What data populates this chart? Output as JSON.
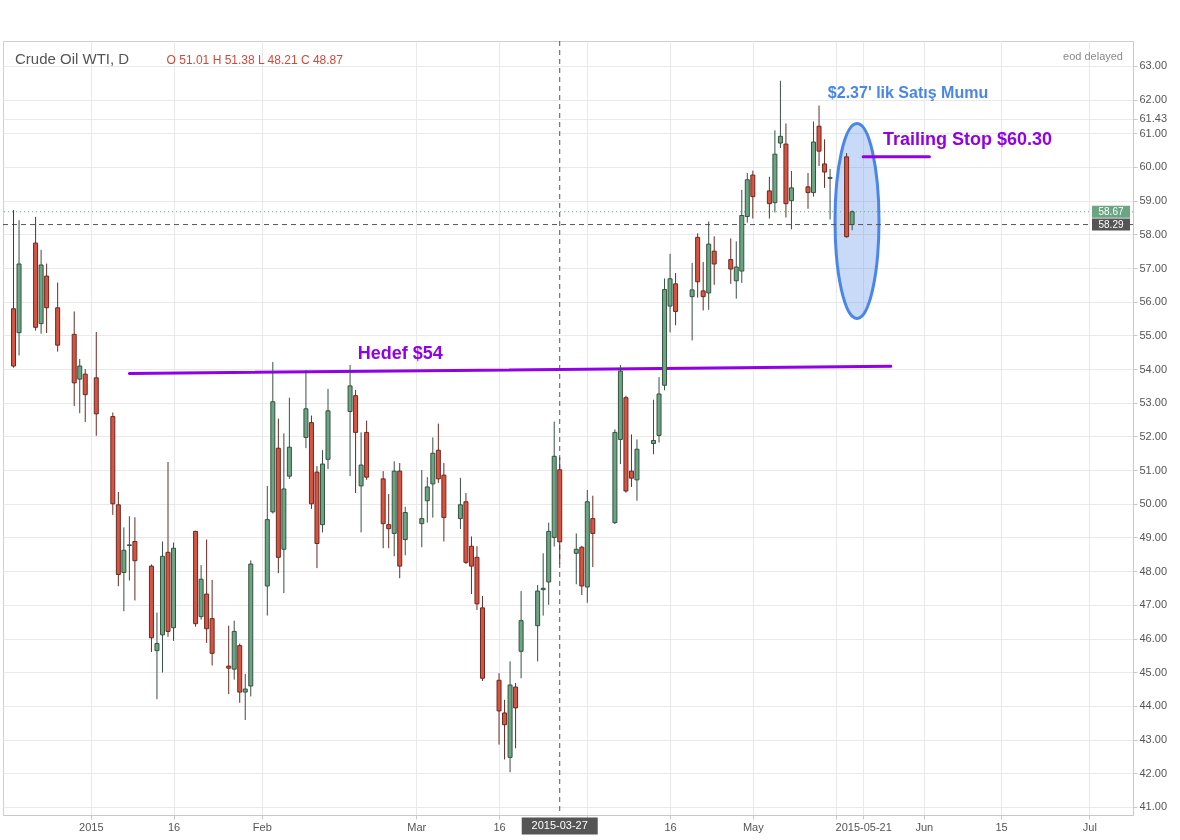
{
  "chart_data": {
    "type": "candlestick",
    "title": "Crude Oil WTI, D",
    "subtitle": "O 51.01 H 51.38 L 48.21 C 48.87",
    "x": [
      "2014-12-18",
      "2014-12-19",
      "2014-12-22",
      "2014-12-23",
      "2014-12-24",
      "2014-12-26",
      "2014-12-29",
      "2014-12-30",
      "2014-12-31",
      "2015-01-02",
      "2015-01-05",
      "2015-01-06",
      "2015-01-07",
      "2015-01-08",
      "2015-01-09",
      "2015-01-12",
      "2015-01-13",
      "2015-01-14",
      "2015-01-15",
      "2015-01-16",
      "2015-01-20",
      "2015-01-21",
      "2015-01-22",
      "2015-01-23",
      "2015-01-26",
      "2015-01-27",
      "2015-01-28",
      "2015-01-29",
      "2015-01-30",
      "2015-02-02",
      "2015-02-03",
      "2015-02-04",
      "2015-02-05",
      "2015-02-06",
      "2015-02-09",
      "2015-02-10",
      "2015-02-11",
      "2015-02-12",
      "2015-02-13",
      "2015-02-17",
      "2015-02-18",
      "2015-02-19",
      "2015-02-20",
      "2015-02-23",
      "2015-02-24",
      "2015-02-25",
      "2015-02-26",
      "2015-02-27",
      "2015-03-02",
      "2015-03-03",
      "2015-03-04",
      "2015-03-05",
      "2015-03-06",
      "2015-03-09",
      "2015-03-10",
      "2015-03-11",
      "2015-03-12",
      "2015-03-13",
      "2015-03-16",
      "2015-03-17",
      "2015-03-18",
      "2015-03-19",
      "2015-03-20",
      "2015-03-23",
      "2015-03-24",
      "2015-03-25",
      "2015-03-26",
      "2015-03-27",
      "2015-03-30",
      "2015-03-31",
      "2015-04-01",
      "2015-04-02",
      "2015-04-06",
      "2015-04-07",
      "2015-04-08",
      "2015-04-09",
      "2015-04-10",
      "2015-04-13",
      "2015-04-14",
      "2015-04-15",
      "2015-04-16",
      "2015-04-17",
      "2015-04-20",
      "2015-04-21",
      "2015-04-22",
      "2015-04-23",
      "2015-04-24",
      "2015-04-27",
      "2015-04-28",
      "2015-04-29",
      "2015-04-30",
      "2015-05-01",
      "2015-05-04",
      "2015-05-05",
      "2015-05-06",
      "2015-05-07",
      "2015-05-08",
      "2015-05-11",
      "2015-05-12",
      "2015-05-13",
      "2015-05-14",
      "2015-05-15",
      "2015-05-18",
      "2015-05-19"
    ],
    "ohlc": [
      [
        55.79,
        58.72,
        54.04,
        54.09
      ],
      [
        55.08,
        58.42,
        54.4,
        57.12
      ],
      [
        57.74,
        58.52,
        55.14,
        55.24
      ],
      [
        55.35,
        57.54,
        55.05,
        57.09
      ],
      [
        56.76,
        57.13,
        55.07,
        55.82
      ],
      [
        55.82,
        56.57,
        54.52,
        54.71
      ],
      [
        55.03,
        55.71,
        52.9,
        53.59
      ],
      [
        53.7,
        54.3,
        52.69,
        54.09
      ],
      [
        53.85,
        54.0,
        52.43,
        53.24
      ],
      [
        53.74,
        55.1,
        52.02,
        52.67
      ],
      [
        52.59,
        52.71,
        49.67,
        50.0
      ],
      [
        49.97,
        50.35,
        47.55,
        47.9
      ],
      [
        47.96,
        49.3,
        46.81,
        48.62
      ],
      [
        48.76,
        49.63,
        47.72,
        48.78
      ],
      [
        48.88,
        49.6,
        47.13,
        48.31
      ],
      [
        48.15,
        48.2,
        45.6,
        46.02
      ],
      [
        45.64,
        46.77,
        44.2,
        45.85
      ],
      [
        46.11,
        48.88,
        44.99,
        48.44
      ],
      [
        48.56,
        51.24,
        46.05,
        46.21
      ],
      [
        46.32,
        48.85,
        45.93,
        48.68
      ],
      [
        49.18,
        49.2,
        46.35,
        46.44
      ],
      [
        46.65,
        48.18,
        46.56,
        47.76
      ],
      [
        47.32,
        48.94,
        45.87,
        46.29
      ],
      [
        46.59,
        47.74,
        45.2,
        45.56
      ],
      [
        45.18,
        46.38,
        44.35,
        45.12
      ],
      [
        45.09,
        46.53,
        44.78,
        46.21
      ],
      [
        45.79,
        45.85,
        44.09,
        44.41
      ],
      [
        44.41,
        44.95,
        43.58,
        44.5
      ],
      [
        44.59,
        48.32,
        44.28,
        48.21
      ],
      [
        47.56,
        50.53,
        46.68,
        49.53
      ],
      [
        49.76,
        54.21,
        49.71,
        53.03
      ],
      [
        51.65,
        52.53,
        47.94,
        48.41
      ],
      [
        48.65,
        52.09,
        47.35,
        50.44
      ],
      [
        50.82,
        53.15,
        50.74,
        51.68
      ],
      [
        51.97,
        53.97,
        51.65,
        52.82
      ],
      [
        52.41,
        52.62,
        49.85,
        50.0
      ],
      [
        50.94,
        51.12,
        48.09,
        48.82
      ],
      [
        49.38,
        51.59,
        49.15,
        51.18
      ],
      [
        51.32,
        53.41,
        51.03,
        52.76
      ],
      [
        52.74,
        54.12,
        50.82,
        53.5
      ],
      [
        53.21,
        53.38,
        50.32,
        52.12
      ],
      [
        50.53,
        52.12,
        49.15,
        51.15
      ],
      [
        52.12,
        52.47,
        50.71,
        50.79
      ],
      [
        50.74,
        50.97,
        48.68,
        49.41
      ],
      [
        49.38,
        50.29,
        48.68,
        49.26
      ],
      [
        49.12,
        51.26,
        48.44,
        50.97
      ],
      [
        50.97,
        51.21,
        47.79,
        48.15
      ],
      [
        48.94,
        49.91,
        48.47,
        49.74
      ],
      [
        49.41,
        51.0,
        48.71,
        49.56
      ],
      [
        50.09,
        50.79,
        49.44,
        50.5
      ],
      [
        50.59,
        51.97,
        49.59,
        51.5
      ],
      [
        51.59,
        52.38,
        50.62,
        50.74
      ],
      [
        50.85,
        51.21,
        48.88,
        49.59
      ],
      [
        49.56,
        50.77,
        49.25,
        49.97
      ],
      [
        50.06,
        50.32,
        48.21,
        48.26
      ],
      [
        48.74,
        49.03,
        47.32,
        48.15
      ],
      [
        48.41,
        48.74,
        46.85,
        47.03
      ],
      [
        46.91,
        47.26,
        44.74,
        44.82
      ],
      [
        44.76,
        44.97,
        42.85,
        43.85
      ],
      [
        43.79,
        44.18,
        42.41,
        43.44
      ],
      [
        42.47,
        45.32,
        42.03,
        44.62
      ],
      [
        44.56,
        44.68,
        42.74,
        43.94
      ],
      [
        45.62,
        47.41,
        44.82,
        46.53
      ],
      [
        46.38,
        47.59,
        45.32,
        47.41
      ],
      [
        47.45,
        48.53,
        46.68,
        47.49
      ],
      [
        47.68,
        49.44,
        47.0,
        49.18
      ],
      [
        49.0,
        52.44,
        48.73,
        51.41
      ],
      [
        51.01,
        51.38,
        48.21,
        48.87
      ],
      [
        48.53,
        49.12,
        47.61,
        48.65
      ],
      [
        48.71,
        48.75,
        47.29,
        47.56
      ],
      [
        47.53,
        50.41,
        47.06,
        50.06
      ],
      [
        49.56,
        50.24,
        48.12,
        49.12
      ],
      [
        49.44,
        52.21,
        49.4,
        52.12
      ],
      [
        51.91,
        54.12,
        51.18,
        53.94
      ],
      [
        53.15,
        53.21,
        50.33,
        50.38
      ],
      [
        50.97,
        52.06,
        50.5,
        50.76
      ],
      [
        50.71,
        51.91,
        50.09,
        51.62
      ],
      [
        51.79,
        53.09,
        51.47,
        51.88
      ],
      [
        52.03,
        53.76,
        51.82,
        53.26
      ],
      [
        53.52,
        56.69,
        53.37,
        56.36
      ],
      [
        55.87,
        57.42,
        55.09,
        56.68
      ],
      [
        56.53,
        56.85,
        55.3,
        55.71
      ],
      [
        56.15,
        57.15,
        54.85,
        56.35
      ],
      [
        57.91,
        58.03,
        56.12,
        56.59
      ],
      [
        56.32,
        57.18,
        55.74,
        56.15
      ],
      [
        56.26,
        58.38,
        55.76,
        57.71
      ],
      [
        57.5,
        57.94,
        56.5,
        57.12
      ],
      [
        57.25,
        57.88,
        56.53,
        56.97
      ],
      [
        56.62,
        57.79,
        56.09,
        57.03
      ],
      [
        56.91,
        59.32,
        56.56,
        58.56
      ],
      [
        58.53,
        59.82,
        58.35,
        59.62
      ],
      [
        59.76,
        59.89,
        58.47,
        59.12
      ],
      [
        59.29,
        59.71,
        58.47,
        58.91
      ],
      [
        58.94,
        61.09,
        58.65,
        60.38
      ],
      [
        60.71,
        62.56,
        60.56,
        60.91
      ],
      [
        60.68,
        61.29,
        58.5,
        58.91
      ],
      [
        59.0,
        59.88,
        58.15,
        59.38
      ],
      [
        59.41,
        59.82,
        58.76,
        59.24
      ],
      [
        59.24,
        61.35,
        59.12,
        60.74
      ],
      [
        61.21,
        61.82,
        60.03,
        60.47
      ],
      [
        60.09,
        60.82,
        59.38,
        59.85
      ],
      [
        59.66,
        59.94,
        58.44,
        59.69
      ],
      [
        60.3,
        60.41,
        57.9,
        57.93
      ],
      [
        58.29,
        58.71,
        58.12,
        58.67
      ]
    ],
    "colors": [
      "#d75442",
      "#6ba583",
      "#d75442",
      "#6ba583",
      "#d75442",
      "#d75442",
      "#d75442",
      "#6ba583",
      "#d75442",
      "#d75442",
      "#d75442",
      "#d75442",
      "#6ba583",
      "#6ba583",
      "#d75442",
      "#d75442",
      "#6ba583",
      "#6ba583",
      "#d75442",
      "#6ba583",
      "#d75442",
      "#6ba583",
      "#d75442",
      "#d75442",
      "#d75442",
      "#6ba583",
      "#d75442",
      "#6ba583",
      "#6ba583",
      "#6ba583",
      "#6ba583",
      "#d75442",
      "#6ba583",
      "#6ba583",
      "#6ba583",
      "#d75442",
      "#d75442",
      "#6ba583",
      "#6ba583",
      "#6ba583",
      "#d75442",
      "#6ba583",
      "#d75442",
      "#d75442",
      "#d75442",
      "#6ba583",
      "#d75442",
      "#6ba583",
      "#6ba583",
      "#6ba583",
      "#6ba583",
      "#d75442",
      "#d75442",
      "#6ba583",
      "#d75442",
      "#d75442",
      "#d75442",
      "#d75442",
      "#d75442",
      "#d75442",
      "#6ba583",
      "#d75442",
      "#6ba583",
      "#6ba583",
      "#6ba583",
      "#6ba583",
      "#6ba583",
      "#d75442",
      "#6ba583",
      "#d75442",
      "#6ba583",
      "#d75442",
      "#6ba583",
      "#6ba583",
      "#d75442",
      "#d75442",
      "#6ba583",
      "#6ba583",
      "#6ba583",
      "#6ba583",
      "#6ba583",
      "#d75442",
      "#6ba583",
      "#d75442",
      "#d75442",
      "#6ba583",
      "#d75442",
      "#d75442",
      "#6ba583",
      "#6ba583",
      "#6ba583",
      "#d75442",
      "#d75442",
      "#6ba583",
      "#6ba583",
      "#d75442",
      "#6ba583",
      "#d75442",
      "#6ba583",
      "#d75442",
      "#d75442",
      "#6ba583",
      "#d75442",
      "#6ba583"
    ],
    "series": [
      {
        "type": "line",
        "name": "Hedef $54",
        "color": "#9100e6",
        "x": [
          "2015-01-08",
          "2015-05-26"
        ],
        "values": [
          53.87,
          54.08
        ]
      },
      {
        "type": "line",
        "name": "Trailing Stop $60.30",
        "color": "#9100e6",
        "x": [
          "2015-05-21",
          "2015-06-02"
        ],
        "values": [
          60.3,
          60.3
        ]
      }
    ],
    "annotations": [
      "$2.37' lik Satış Mumu",
      "eod delayed"
    ],
    "ref_lines": [
      {
        "axis": "x",
        "value": "2015-03-27",
        "label": "2015-03-27",
        "color": "#555555",
        "line_style": "dashed"
      },
      {
        "axis": "y",
        "value": 58.67,
        "label": "58.67",
        "color": "#6ba583",
        "line_style": "dotted"
      },
      {
        "axis": "y",
        "value": 58.29,
        "label": "58.29",
        "color": "#555555",
        "line_style": "dashed"
      }
    ],
    "xlim": [
      "2014-12-17",
      "2015-07-08"
    ],
    "xticks": [
      {
        "value": "2015-01-01",
        "label": "2015"
      },
      {
        "value": "2015-01-16",
        "label": "16"
      },
      {
        "value": "2015-02-01",
        "label": "Feb"
      },
      {
        "value": "2015-03-01",
        "label": "Mar"
      },
      {
        "value": "2015-03-16",
        "label": "16"
      },
      {
        "value": "2015-04-01",
        "label": null
      },
      {
        "value": "2015-04-16",
        "label": "16"
      },
      {
        "value": "2015-05-01",
        "label": "May"
      },
      {
        "value": "2015-05-16",
        "label": null
      },
      {
        "value": "2015-05-21",
        "label": "2015-05-21"
      },
      {
        "value": "2015-06-01",
        "label": "Jun"
      },
      {
        "value": "2015-06-15",
        "label": "15"
      },
      {
        "value": "2015-07-01",
        "label": "Jul"
      }
    ],
    "ylim": [
      40.76,
      63.74
    ],
    "yticks": [
      {
        "value": 41,
        "label": "41.00"
      },
      {
        "value": 42,
        "label": "42.00"
      },
      {
        "value": 43,
        "label": "43.00"
      },
      {
        "value": 44,
        "label": "44.00"
      },
      {
        "value": 45,
        "label": "45.00"
      },
      {
        "value": 46,
        "label": "46.00"
      },
      {
        "value": 47,
        "label": "47.00"
      },
      {
        "value": 48,
        "label": "48.00"
      },
      {
        "value": 49,
        "label": "49.00"
      },
      {
        "value": 50,
        "label": "50.00"
      },
      {
        "value": 51,
        "label": "51.00"
      },
      {
        "value": 52,
        "label": "52.00"
      },
      {
        "value": 53,
        "label": "53.00"
      },
      {
        "value": 54,
        "label": "54.00"
      },
      {
        "value": 55,
        "label": "55.00"
      },
      {
        "value": 56,
        "label": "56.00"
      },
      {
        "value": 57,
        "label": "57.00"
      },
      {
        "value": 58,
        "label": "58.00"
      },
      {
        "value": 59,
        "label": "59.00"
      },
      {
        "value": 60,
        "label": "60.00"
      },
      {
        "value": 61,
        "label": "61.00"
      },
      {
        "value": 61.43,
        "label": "61.43"
      },
      {
        "value": 62,
        "label": "62.00"
      },
      {
        "value": 63,
        "label": "63.00"
      }
    ],
    "grid": true
  }
}
